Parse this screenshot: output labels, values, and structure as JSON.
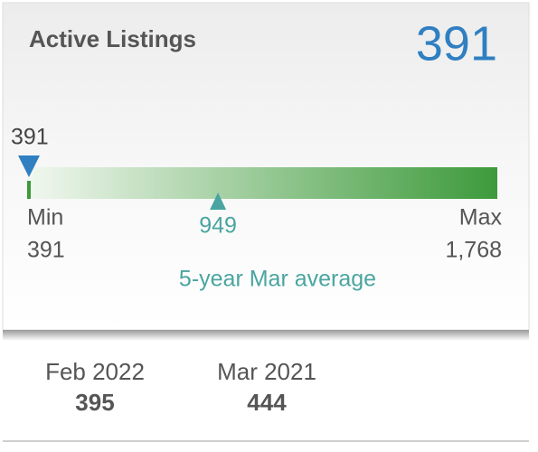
{
  "header": {
    "title": "Active Listings",
    "value": 391
  },
  "gauge": {
    "current": 391,
    "average": 949,
    "min_label": "Min",
    "max_label": "Max",
    "min": 391,
    "max": {
      "value": 1768,
      "label": "1,768"
    },
    "average_caption": "5-year Mar average"
  },
  "comparisons": [
    {
      "label": "Feb 2022",
      "value": 395
    },
    {
      "label": "Mar 2021",
      "value": 444
    }
  ]
}
